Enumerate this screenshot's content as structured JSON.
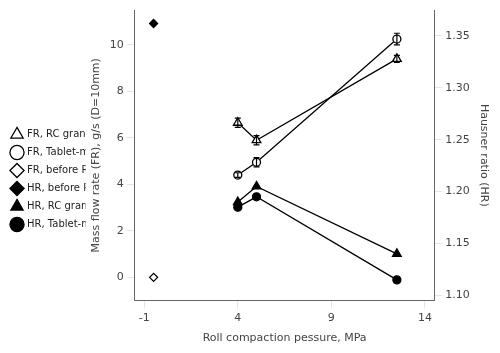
{
  "chart_data": {
    "type": "line",
    "x_label": "Roll compaction pessure, MPa",
    "y_label": "Mass flow rate (FR), g/s (D=10mm)",
    "y2_label": "Hausner ratio (HR)",
    "xlim": [
      -1.5,
      14.5
    ],
    "xticks": [
      -1,
      4,
      9,
      14
    ],
    "ylim": [
      -1.0,
      11.5
    ],
    "yticks": [
      0,
      2,
      4,
      6,
      8,
      10
    ],
    "y2lim": [
      1.095,
      1.375
    ],
    "y2ticks": [
      {
        "value": 1.1,
        "label": "1.10"
      },
      {
        "value": 1.15,
        "label": "1.15"
      },
      {
        "value": 1.2,
        "label": "1.20"
      },
      {
        "value": 1.25,
        "label": "1.25"
      },
      {
        "value": 1.3,
        "label": "1.30"
      },
      {
        "value": 1.35,
        "label": "1.35"
      }
    ],
    "grid": false,
    "legend": "left",
    "series": [
      {
        "name": "FR, RC granules",
        "axis": "y",
        "color": "#000000",
        "marker": "triangle_open",
        "line_style": "solid",
        "x": [
          4.0,
          5.0,
          12.5
        ],
        "values": [
          6.65,
          5.9,
          9.4
        ],
        "errors": [
          0.2,
          0.2,
          0.15
        ]
      },
      {
        "name": "FR, Tablet-mix",
        "axis": "y",
        "color": "#000000",
        "marker": "circle_open",
        "line_style": "solid",
        "x": [
          4.0,
          5.0,
          12.5
        ],
        "values": [
          4.4,
          4.95,
          10.25
        ],
        "errors": [
          0.1,
          0.2,
          0.25
        ]
      },
      {
        "name": "FR, before RC",
        "axis": "y",
        "color": "#000000",
        "marker": "diamond_open",
        "line_style": "none",
        "x": [
          -0.5
        ],
        "values": [
          0.0
        ]
      },
      {
        "name": "HR, before RC",
        "axis": "y2",
        "color": "#000000",
        "marker": "diamond",
        "line_style": "none",
        "x": [
          -0.5
        ],
        "values": [
          1.362
        ]
      },
      {
        "name": "HR, RC granules",
        "axis": "y2",
        "color": "#000000",
        "marker": "triangle",
        "line_style": "solid",
        "x": [
          4.0,
          5.0,
          12.5
        ],
        "values": [
          1.19,
          1.205,
          1.14
        ]
      },
      {
        "name": "HR, Tablet-mix",
        "axis": "y2",
        "color": "#000000",
        "marker": "circle",
        "line_style": "solid",
        "x": [
          4.0,
          5.0,
          12.5
        ],
        "values": [
          1.185,
          1.195,
          1.115
        ]
      }
    ]
  }
}
